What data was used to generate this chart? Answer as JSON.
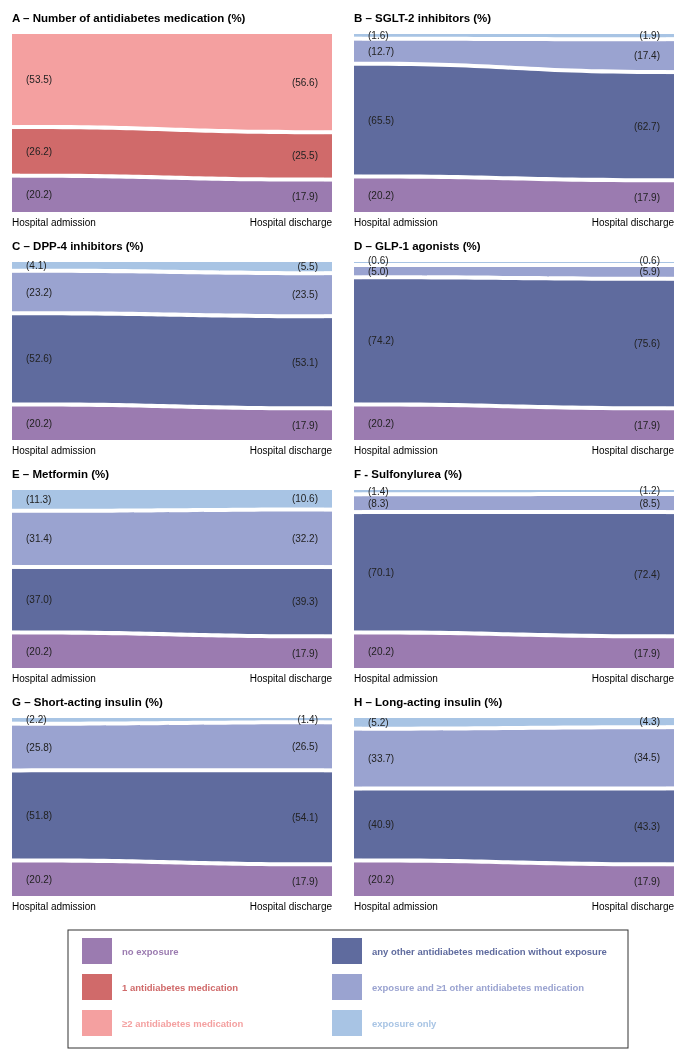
{
  "chart_data": [
    {
      "type": "other",
      "title": "A – Number of antidiabetes medication (%)",
      "categories": [
        "Hospital admission",
        "Hospital discharge"
      ],
      "legend": "bottom",
      "series": [
        {
          "name": "no exposure",
          "color": "#9b7bb0",
          "values": [
            20.2,
            17.9
          ],
          "value_labels": [
            "(20.2)",
            "(17.9)"
          ]
        },
        {
          "name": "1 antidiabetes medication",
          "color": "#d06a6a",
          "values": [
            26.2,
            25.5
          ],
          "value_labels": [
            "(26.2)",
            "(25.5)"
          ]
        },
        {
          "name": "≥2 antidiabetes medication",
          "color": "#f4a0a0",
          "values": [
            53.5,
            56.6
          ],
          "value_labels": [
            "(53.5)",
            "(56.6)"
          ]
        }
      ]
    },
    {
      "type": "other",
      "title": "B – SGLT-2 inhibitors (%)",
      "categories": [
        "Hospital admission",
        "Hospital discharge"
      ],
      "legend": "bottom",
      "series": [
        {
          "color": "#9b7bb0",
          "values": [
            20.2,
            17.9
          ],
          "value_labels": [
            "(20.2)",
            "(17.9)"
          ]
        },
        {
          "name": "any other antidiabetes medication without exposure",
          "color": "#5f6b9e",
          "values": [
            65.5,
            62.7
          ],
          "value_labels": [
            "(65.5)",
            "(62.7)"
          ]
        },
        {
          "name": "exposure and ≥1 other antidiabetes medication",
          "color": "#9aa3d0",
          "values": [
            12.7,
            17.4
          ],
          "value_labels": [
            "(12.7)",
            "(17.4)"
          ]
        },
        {
          "name": "exposure only",
          "color": "#a8c4e4",
          "values": [
            1.6,
            1.9
          ],
          "value_labels": [
            "(1.6)",
            "(1.9)"
          ]
        }
      ]
    },
    {
      "type": "other",
      "title": "C – DPP-4 inhibitors (%)",
      "categories": [
        "Hospital admission",
        "Hospital discharge"
      ],
      "series": [
        {
          "color": "#9b7bb0",
          "values": [
            20.2,
            17.9
          ],
          "value_labels": [
            "(20.2)",
            "(17.9)"
          ]
        },
        {
          "color": "#5f6b9e",
          "values": [
            52.6,
            53.1
          ],
          "value_labels": [
            "(52.6)",
            "(53.1)"
          ]
        },
        {
          "color": "#9aa3d0",
          "values": [
            23.2,
            23.5
          ],
          "value_labels": [
            "(23.2)",
            "(23.5)"
          ]
        },
        {
          "color": "#a8c4e4",
          "values": [
            4.1,
            5.5
          ],
          "value_labels": [
            "(4.1)",
            "(5.5)"
          ]
        }
      ]
    },
    {
      "type": "other",
      "title": "D – GLP-1 agonists (%)",
      "categories": [
        "Hospital admission",
        "Hospital discharge"
      ],
      "series": [
        {
          "color": "#9b7bb0",
          "values": [
            20.2,
            17.9
          ],
          "value_labels": [
            "(20.2)",
            "(17.9)"
          ]
        },
        {
          "color": "#5f6b9e",
          "values": [
            74.2,
            75.6
          ],
          "value_labels": [
            "(74.2)",
            "(75.6)"
          ]
        },
        {
          "color": "#9aa3d0",
          "values": [
            5.0,
            5.9
          ],
          "value_labels": [
            "(5.0)",
            "(5.9)"
          ]
        },
        {
          "color": "#a8c4e4",
          "values": [
            0.6,
            0.6
          ],
          "value_labels": [
            "(0.6)",
            "(0.6)"
          ]
        }
      ]
    },
    {
      "type": "other",
      "title": "E – Metformin (%)",
      "categories": [
        "Hospital admission",
        "Hospital discharge"
      ],
      "series": [
        {
          "color": "#9b7bb0",
          "values": [
            20.2,
            17.9
          ],
          "value_labels": [
            "(20.2)",
            "(17.9)"
          ]
        },
        {
          "color": "#5f6b9e",
          "values": [
            37.0,
            39.3
          ],
          "value_labels": [
            "(37.0)",
            "(39.3)"
          ]
        },
        {
          "color": "#9aa3d0",
          "values": [
            31.4,
            32.2
          ],
          "value_labels": [
            "(31.4)",
            "(32.2)"
          ]
        },
        {
          "color": "#a8c4e4",
          "values": [
            11.3,
            10.6
          ],
          "value_labels": [
            "(11.3)",
            "(10.6)"
          ]
        }
      ]
    },
    {
      "type": "other",
      "title": "F - Sulfonylurea (%)",
      "categories": [
        "Hospital admission",
        "Hospital discharge"
      ],
      "series": [
        {
          "color": "#9b7bb0",
          "values": [
            20.2,
            17.9
          ],
          "value_labels": [
            "(20.2)",
            "(17.9)"
          ]
        },
        {
          "color": "#5f6b9e",
          "values": [
            70.1,
            72.4
          ],
          "value_labels": [
            "(70.1)",
            "(72.4)"
          ]
        },
        {
          "color": "#9aa3d0",
          "values": [
            8.3,
            8.5
          ],
          "value_labels": [
            "(8.3)",
            "(8.5)"
          ]
        },
        {
          "color": "#a8c4e4",
          "values": [
            1.4,
            1.2
          ],
          "value_labels": [
            "(1.4)",
            "(1.2)"
          ]
        }
      ]
    },
    {
      "type": "other",
      "title": "G – Short-acting insulin (%)",
      "categories": [
        "Hospital admission",
        "Hospital discharge"
      ],
      "series": [
        {
          "color": "#9b7bb0",
          "values": [
            20.2,
            17.9
          ],
          "value_labels": [
            "(20.2)",
            "(17.9)"
          ]
        },
        {
          "color": "#5f6b9e",
          "values": [
            51.8,
            54.1
          ],
          "value_labels": [
            "(51.8)",
            "(54.1)"
          ]
        },
        {
          "color": "#9aa3d0",
          "values": [
            25.8,
            26.5
          ],
          "value_labels": [
            "(25.8)",
            "(26.5)"
          ]
        },
        {
          "color": "#a8c4e4",
          "values": [
            2.2,
            1.4
          ],
          "value_labels": [
            "(2.2)",
            "(1.4)"
          ]
        }
      ]
    },
    {
      "type": "other",
      "title": "H – Long-acting insulin (%)",
      "categories": [
        "Hospital admission",
        "Hospital discharge"
      ],
      "series": [
        {
          "color": "#9b7bb0",
          "values": [
            20.2,
            17.9
          ],
          "value_labels": [
            "(20.2)",
            "(17.9)"
          ]
        },
        {
          "color": "#5f6b9e",
          "values": [
            40.9,
            43.3
          ],
          "value_labels": [
            "(40.9)",
            "(43.3)"
          ]
        },
        {
          "color": "#9aa3d0",
          "values": [
            33.7,
            34.5
          ],
          "value_labels": [
            "(33.7)",
            "(34.5)"
          ]
        },
        {
          "color": "#a8c4e4",
          "values": [
            5.2,
            4.3
          ],
          "value_labels": [
            "(5.2)",
            "(4.3)"
          ]
        }
      ]
    }
  ]
}
